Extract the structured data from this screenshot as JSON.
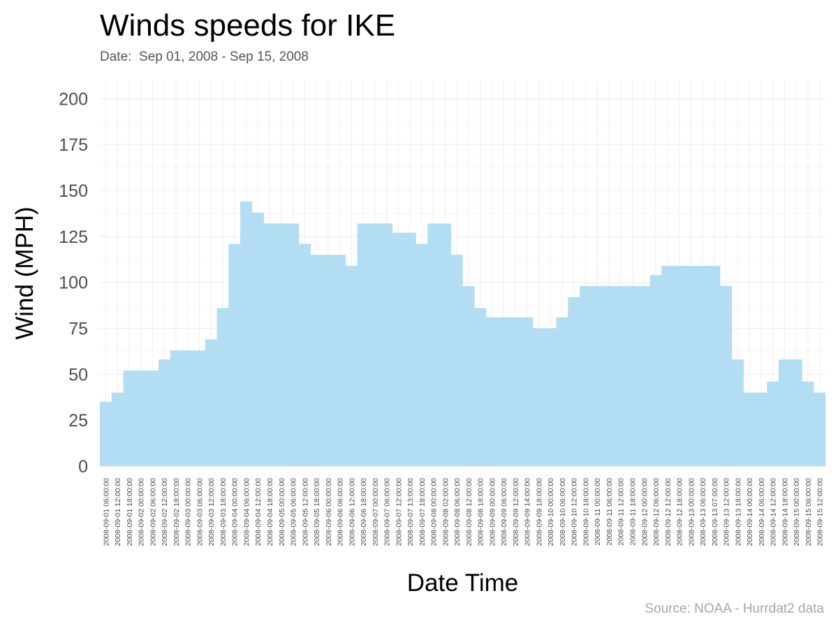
{
  "title": "Winds speeds for IKE",
  "subtitle": "Date:  Sep 01, 2008 - Sep 15, 2008",
  "source": "Source: NOAA - Hurrdat2 data",
  "chart_data": {
    "type": "bar",
    "xlabel": "Date Time",
    "ylabel": "Wind (MPH)",
    "ylim": [
      0,
      210
    ],
    "yticks": [
      0,
      25,
      50,
      75,
      100,
      125,
      150,
      175,
      200
    ],
    "grid": true,
    "bar_color": "#b3ddf3",
    "categories": [
      "2008-09-01 06:00:00",
      "2008-09-01 12:00:00",
      "2008-09-01 18:00:00",
      "2008-09-02 00:00:00",
      "2008-09-02 06:00:00",
      "2008-09-02 12:00:00",
      "2008-09-02 18:00:00",
      "2008-09-03 00:00:00",
      "2008-09-03 06:00:00",
      "2008-09-03 12:00:00",
      "2008-09-03 18:00:00",
      "2008-09-04 00:00:00",
      "2008-09-04 06:00:00",
      "2008-09-04 12:00:00",
      "2008-09-04 18:00:00",
      "2008-09-05 00:00:00",
      "2008-09-05 06:00:00",
      "2008-09-05 12:00:00",
      "2008-09-05 18:00:00",
      "2008-09-06 00:00:00",
      "2008-09-06 06:00:00",
      "2008-09-06 12:00:00",
      "2008-09-06 18:00:00",
      "2008-09-07 00:00:00",
      "2008-09-07 06:00:00",
      "2008-09-07 12:00:00",
      "2008-09-07 13:00:00",
      "2008-09-07 18:00:00",
      "2008-09-08 00:00:00",
      "2008-09-08 02:00:00",
      "2008-09-08 06:00:00",
      "2008-09-08 12:00:00",
      "2008-09-08 18:00:00",
      "2008-09-09 00:00:00",
      "2008-09-09 06:00:00",
      "2008-09-09 12:00:00",
      "2008-09-09 14:00:00",
      "2008-09-09 18:00:00",
      "2008-09-10 00:00:00",
      "2008-09-10 06:00:00",
      "2008-09-10 12:00:00",
      "2008-09-10 18:00:00",
      "2008-09-11 00:00:00",
      "2008-09-11 06:00:00",
      "2008-09-11 12:00:00",
      "2008-09-11 18:00:00",
      "2008-09-12 00:00:00",
      "2008-09-12 06:00:00",
      "2008-09-12 12:00:00",
      "2008-09-12 18:00:00",
      "2008-09-13 00:00:00",
      "2008-09-13 06:00:00",
      "2008-09-13 07:00:00",
      "2008-09-13 12:00:00",
      "2008-09-13 18:00:00",
      "2008-09-14 00:00:00",
      "2008-09-14 06:00:00",
      "2008-09-14 12:00:00",
      "2008-09-14 18:00:00",
      "2008-09-15 00:00:00",
      "2008-09-15 06:00:00",
      "2008-09-15 12:00:00"
    ],
    "values": [
      35,
      40,
      52,
      52,
      52,
      58,
      63,
      63,
      63,
      69,
      86,
      121,
      144,
      138,
      132,
      132,
      132,
      121,
      115,
      115,
      115,
      109,
      132,
      132,
      132,
      127,
      127,
      121,
      132,
      132,
      115,
      98,
      86,
      81,
      81,
      81,
      81,
      75,
      75,
      81,
      92,
      98,
      98,
      98,
      98,
      98,
      98,
      104,
      109,
      109,
      109,
      109,
      109,
      98,
      58,
      40,
      40,
      46,
      58,
      58,
      46,
      40
    ]
  }
}
